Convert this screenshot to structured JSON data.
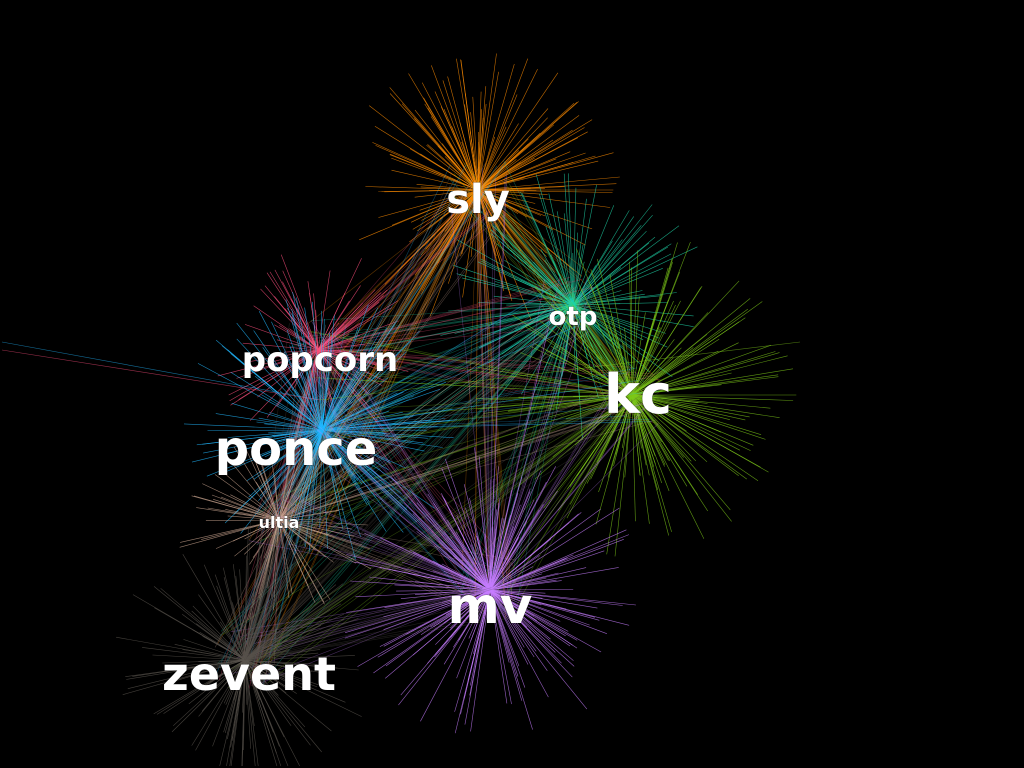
{
  "hubs": [
    {
      "id": "sly",
      "label": "sly",
      "color": "#ff8c00",
      "spread": 130,
      "count": 170
    },
    {
      "id": "otp",
      "label": "otp",
      "color": "#1fd4a8",
      "spread": 125,
      "count": 130
    },
    {
      "id": "popcorn",
      "label": "popcorn",
      "color": "#ff4f7d",
      "spread": 95,
      "count": 90
    },
    {
      "id": "kc",
      "label": "kc",
      "color": "#7ec81a",
      "spread": 150,
      "count": 170
    },
    {
      "id": "ponce",
      "label": "ponce",
      "color": "#22b8ff",
      "spread": 130,
      "count": 170
    },
    {
      "id": "ultia",
      "label": "ultia",
      "color": "#c9a48f",
      "spread": 95,
      "count": 80
    },
    {
      "id": "mv",
      "label": "mv",
      "color": "#c77dff",
      "spread": 140,
      "count": 200
    },
    {
      "id": "zevent",
      "label": "zevent",
      "color": "#5a544e",
      "spread": 120,
      "count": 150
    }
  ]
}
